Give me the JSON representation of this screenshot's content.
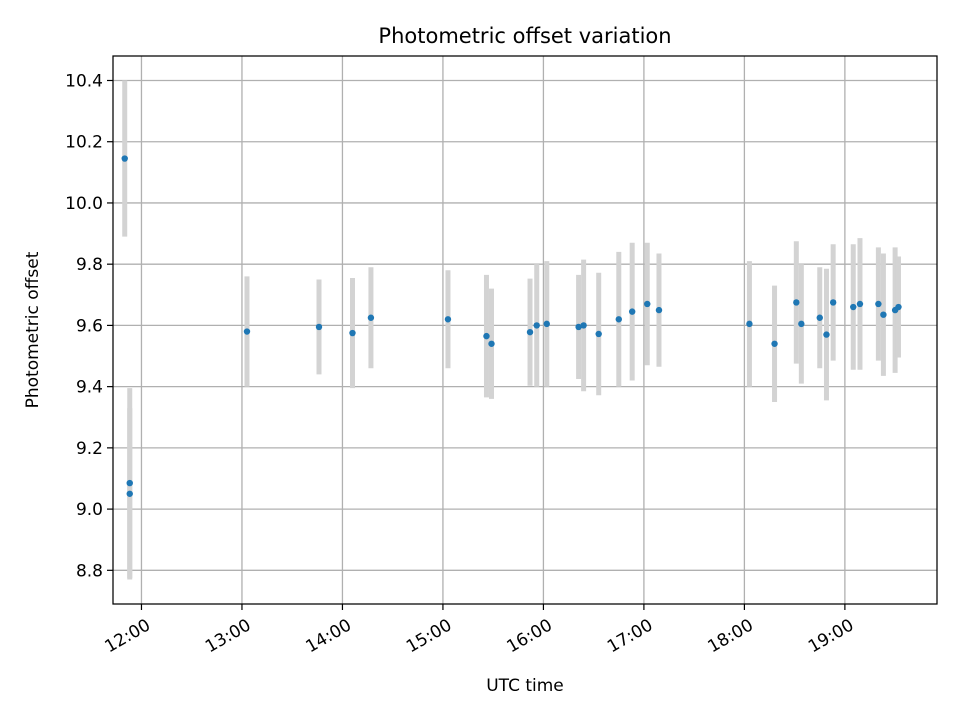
{
  "chart_data": {
    "type": "scatter",
    "title": "Photometric offset variation",
    "xlabel": "UTC time",
    "ylabel": "Photometric offset",
    "x_unit": "UTC hours",
    "xlim": [
      "11:43",
      "19:55"
    ],
    "ylim": [
      8.69,
      10.48
    ],
    "grid": true,
    "legend": "none",
    "colors": {
      "points": "#1f77b4",
      "error_bars": "#d3d3d3",
      "grid": "#b0b0b0",
      "axes": "#000000"
    },
    "x_ticks": [
      "12:00",
      "13:00",
      "14:00",
      "15:00",
      "16:00",
      "17:00",
      "18:00",
      "19:00"
    ],
    "y_ticks": [
      "8.8",
      "9.0",
      "9.2",
      "9.4",
      "9.6",
      "9.8",
      "10.0",
      "10.2",
      "10.4"
    ],
    "points": [
      {
        "x": "11:50",
        "y": 10.145,
        "err": 0.255
      },
      {
        "x": "11:53",
        "y": 9.085,
        "err": 0.31
      },
      {
        "x": "11:53",
        "y": 9.05,
        "err": 0.28
      },
      {
        "x": "13:03",
        "y": 9.58,
        "err": 0.18
      },
      {
        "x": "13:46",
        "y": 9.595,
        "err": 0.155
      },
      {
        "x": "14:06",
        "y": 9.575,
        "err": 0.18
      },
      {
        "x": "14:17",
        "y": 9.625,
        "err": 0.165
      },
      {
        "x": "15:03",
        "y": 9.62,
        "err": 0.16
      },
      {
        "x": "15:26",
        "y": 9.565,
        "err": 0.2
      },
      {
        "x": "15:29",
        "y": 9.54,
        "err": 0.18
      },
      {
        "x": "15:52",
        "y": 9.578,
        "err": 0.175
      },
      {
        "x": "15:56",
        "y": 9.6,
        "err": 0.2
      },
      {
        "x": "16:02",
        "y": 9.605,
        "err": 0.205
      },
      {
        "x": "16:21",
        "y": 9.595,
        "err": 0.17
      },
      {
        "x": "16:24",
        "y": 9.6,
        "err": 0.215
      },
      {
        "x": "16:33",
        "y": 9.572,
        "err": 0.2
      },
      {
        "x": "16:45",
        "y": 9.62,
        "err": 0.22
      },
      {
        "x": "16:53",
        "y": 9.645,
        "err": 0.225
      },
      {
        "x": "17:02",
        "y": 9.67,
        "err": 0.2
      },
      {
        "x": "17:09",
        "y": 9.65,
        "err": 0.185
      },
      {
        "x": "18:03",
        "y": 9.605,
        "err": 0.205
      },
      {
        "x": "18:18",
        "y": 9.54,
        "err": 0.19
      },
      {
        "x": "18:31",
        "y": 9.675,
        "err": 0.2
      },
      {
        "x": "18:34",
        "y": 9.605,
        "err": 0.195
      },
      {
        "x": "18:45",
        "y": 9.625,
        "err": 0.165
      },
      {
        "x": "18:49",
        "y": 9.57,
        "err": 0.215
      },
      {
        "x": "18:53",
        "y": 9.675,
        "err": 0.19
      },
      {
        "x": "19:05",
        "y": 9.66,
        "err": 0.205
      },
      {
        "x": "19:09",
        "y": 9.67,
        "err": 0.215
      },
      {
        "x": "19:20",
        "y": 9.67,
        "err": 0.185
      },
      {
        "x": "19:23",
        "y": 9.635,
        "err": 0.2
      },
      {
        "x": "19:30",
        "y": 9.65,
        "err": 0.205
      },
      {
        "x": "19:32",
        "y": 9.66,
        "err": 0.165
      }
    ]
  }
}
